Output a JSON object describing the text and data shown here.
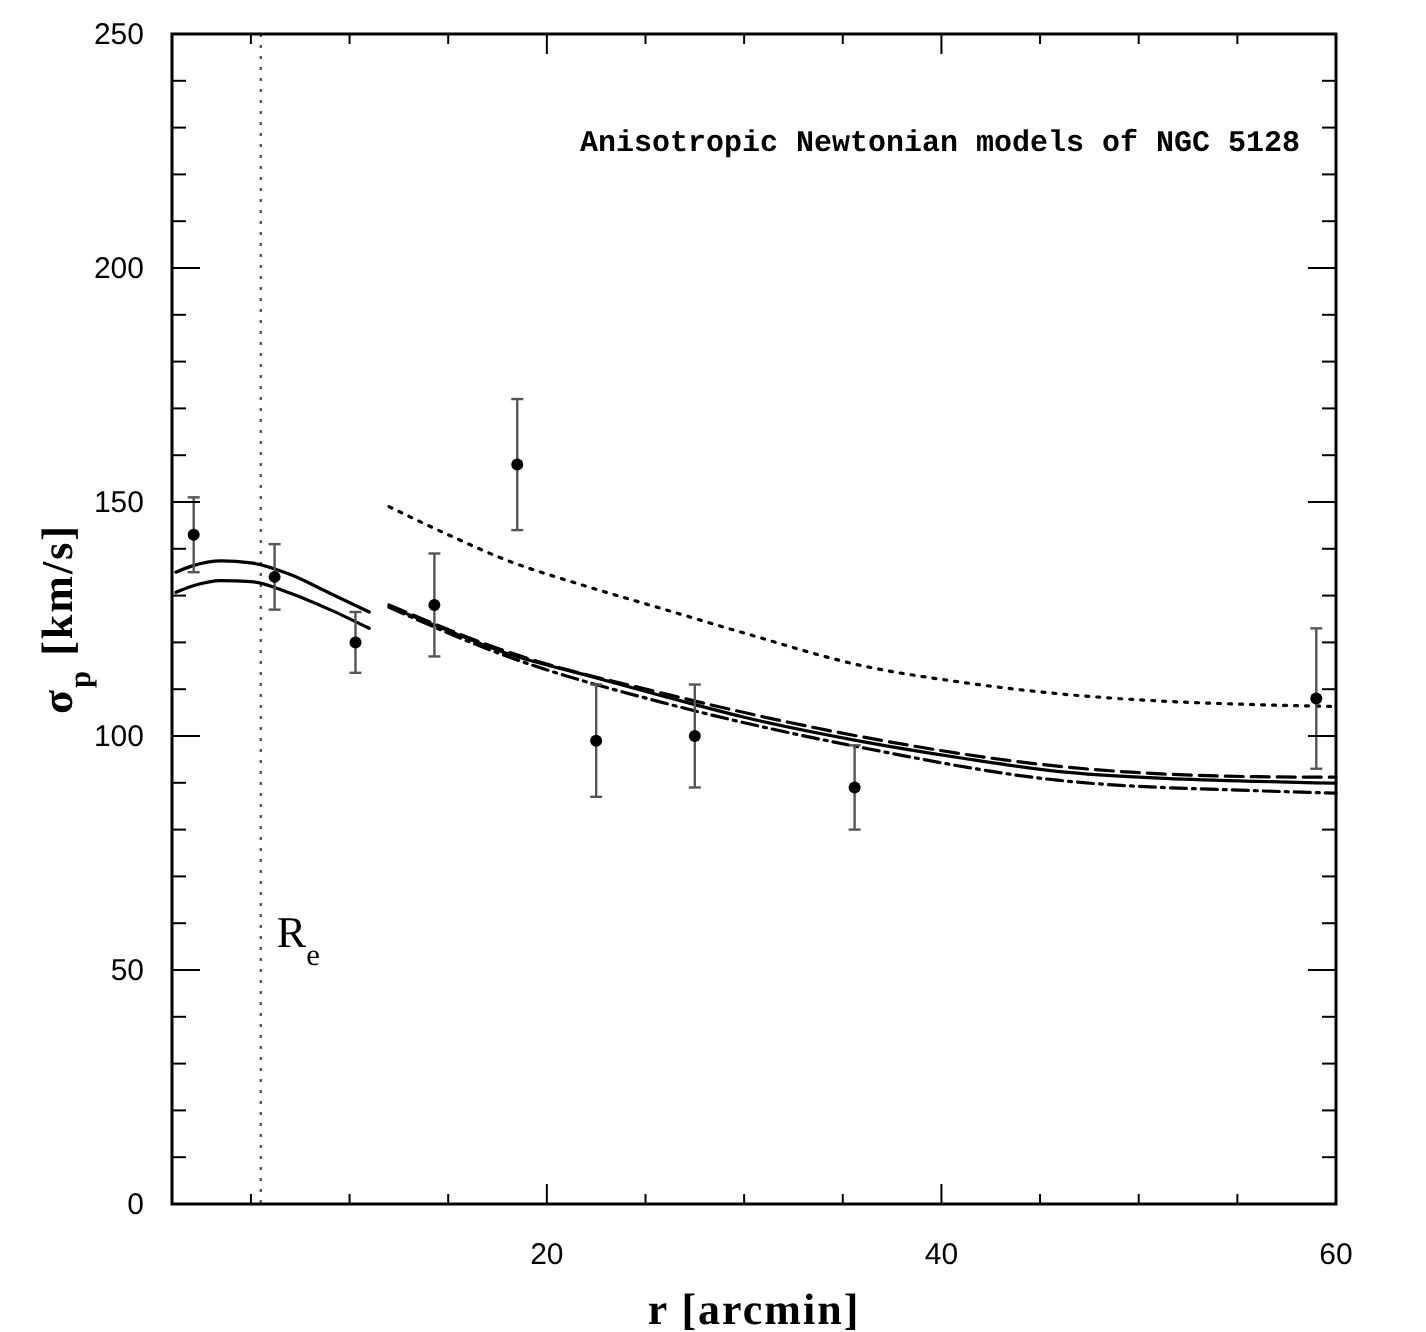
{
  "chart_data": {
    "type": "line",
    "title": "Anisotropic Newtonian models of NGC 5128",
    "xlabel": "r [arcmin]",
    "ylabel": "σ$_{p}$ [km/s]",
    "xlim": [
      1,
      60
    ],
    "ylim": [
      0,
      250
    ],
    "xticks": [
      {
        "value": 5,
        "label": null
      },
      {
        "value": 10,
        "label": null
      },
      {
        "value": 15,
        "label": null
      },
      20,
      {
        "value": 25,
        "label": null
      },
      {
        "value": 30,
        "label": null
      },
      {
        "value": 35,
        "label": null
      },
      40,
      {
        "value": 45,
        "label": null
      },
      {
        "value": 50,
        "label": null
      },
      {
        "value": 55,
        "label": null
      },
      60
    ],
    "yticks": [
      0,
      {
        "value": 10,
        "label": null
      },
      {
        "value": 20,
        "label": null
      },
      {
        "value": 30,
        "label": null
      },
      {
        "value": 40,
        "label": null
      },
      50,
      {
        "value": 60,
        "label": null
      },
      {
        "value": 70,
        "label": null
      },
      {
        "value": 80,
        "label": null
      },
      {
        "value": 90,
        "label": null
      },
      100,
      {
        "value": 110,
        "label": null
      },
      {
        "value": 120,
        "label": null
      },
      {
        "value": 130,
        "label": null
      },
      {
        "value": 140,
        "label": null
      },
      150,
      {
        "value": 160,
        "label": null
      },
      {
        "value": 170,
        "label": null
      },
      {
        "value": 180,
        "label": null
      },
      {
        "value": 190,
        "label": null
      },
      200,
      {
        "value": 210,
        "label": null
      },
      {
        "value": 220,
        "label": null
      },
      {
        "value": 230,
        "label": null
      },
      {
        "value": 240,
        "label": null
      },
      250
    ],
    "grid": false,
    "ref_lines": [
      {
        "axis": "x",
        "value": 5.5,
        "label": "R$_{e}$",
        "line_style": "dotted",
        "color": "#555555"
      }
    ],
    "series": [
      {
        "color": "#000000",
        "line_style": "solid",
        "x": [
          1.2,
          2,
          3.5,
          5,
          7,
          9,
          11
        ],
        "values": [
          135,
          136.3,
          137.4,
          137,
          134.5,
          130.5,
          126.5
        ]
      },
      {
        "color": "#000000",
        "line_style": "solid",
        "x": [
          1.2,
          2,
          3.5,
          5,
          7,
          9,
          11
        ],
        "values": [
          130.7,
          132,
          133.2,
          133,
          130.5,
          127,
          123
        ]
      },
      {
        "color": "#000000",
        "line_style": "solid",
        "x": [
          12,
          15,
          18,
          22,
          26,
          30,
          36,
          41,
          46,
          51,
          56,
          60
        ],
        "values": [
          127.7,
          122.5,
          117.6,
          113,
          108.4,
          104,
          98.8,
          95.3,
          92.4,
          91,
          90.3,
          89.9
        ]
      },
      {
        "color": "#000000",
        "line_style": "dashed",
        "x": [
          12,
          18,
          26,
          36,
          46,
          56,
          60
        ],
        "values": [
          128,
          118,
          109,
          99.8,
          93.5,
          91.3,
          91.2
        ]
      },
      {
        "color": "#000000",
        "line_style": "dashdot",
        "x": [
          12,
          18,
          26,
          36,
          46,
          56,
          60
        ],
        "values": [
          127.5,
          117,
          107,
          97.5,
          90.5,
          88.3,
          87.8
        ]
      },
      {
        "color": "#000000",
        "line_style": "dotted",
        "x": [
          12,
          15,
          18,
          22,
          26,
          30,
          36,
          41,
          46,
          51,
          56,
          60
        ],
        "values": [
          149,
          143,
          137.5,
          132,
          127,
          122,
          115,
          111.5,
          109,
          107.5,
          106.7,
          106.3
        ]
      },
      {
        "type": "scatter",
        "color": "#000000",
        "marker": "circle",
        "x": [
          2.1,
          6.2,
          10.3,
          14.3,
          18.5,
          22.5,
          27.5,
          35.6,
          59
        ],
        "values": [
          143,
          134,
          120,
          128,
          158,
          99,
          100,
          89,
          108
        ],
        "errors": [
          8,
          7,
          6.5,
          11,
          14,
          12,
          11,
          9,
          15
        ]
      }
    ]
  }
}
